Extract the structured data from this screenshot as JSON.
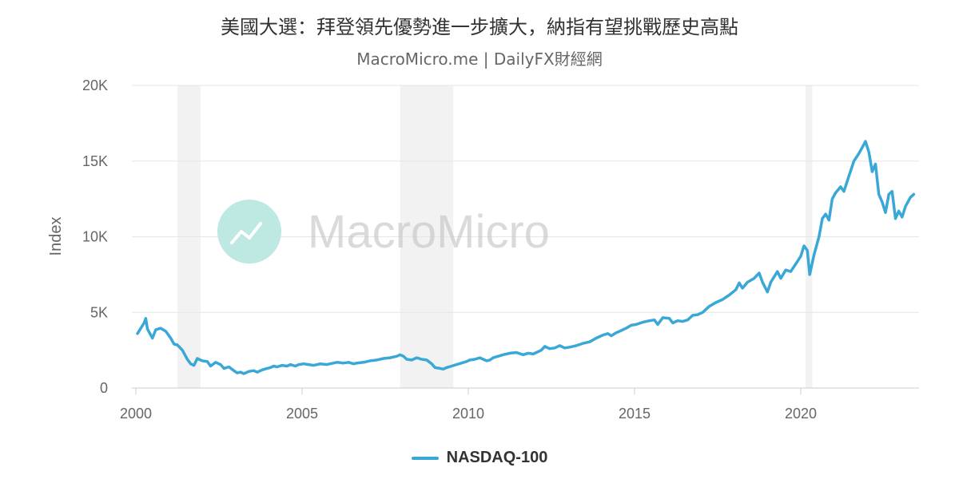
{
  "title": "美國大選：拜登領先優勢進一步擴大，納指有望挑戰歷史高點",
  "subtitle": "MacroMicro.me | DailyFX財經網",
  "watermark": "MacroMicro",
  "colors": {
    "series": "#3aa8d6",
    "recession": "#f2f2f2",
    "grid": "#e6e6e6",
    "axis": "#cccccc",
    "logo": "#b8e6df"
  },
  "chart_data": {
    "type": "line",
    "title": "美國大選：拜登領先優勢進一步擴大，納指有望挑戰歷史高點",
    "ylabel": "Index",
    "ylim": [
      0,
      20000
    ],
    "yticks": [
      0,
      5000,
      10000,
      15000,
      20000
    ],
    "ytick_labels": [
      "0",
      "5K",
      "10K",
      "15K",
      "20K"
    ],
    "xlim": [
      2000.0,
      2023.6
    ],
    "xticks": [
      2000,
      2005,
      2010,
      2015,
      2020
    ],
    "xtick_labels": [
      "2000",
      "2005",
      "2010",
      "2015",
      "2020"
    ],
    "grid": true,
    "legend_position": "bottom-center",
    "shaded_periods": [
      [
        2001.2,
        2001.9
      ],
      [
        2007.9,
        2009.5
      ],
      [
        2020.1,
        2020.3
      ]
    ],
    "series": [
      {
        "name": "NASDAQ-100",
        "points": [
          [
            2000.0,
            3600
          ],
          [
            2000.2,
            4300
          ],
          [
            2000.25,
            4600
          ],
          [
            2000.3,
            3900
          ],
          [
            2000.45,
            3300
          ],
          [
            2000.55,
            3850
          ],
          [
            2000.7,
            3950
          ],
          [
            2000.85,
            3750
          ],
          [
            2001.0,
            3300
          ],
          [
            2001.1,
            2900
          ],
          [
            2001.2,
            2850
          ],
          [
            2001.35,
            2500
          ],
          [
            2001.5,
            1900
          ],
          [
            2001.6,
            1600
          ],
          [
            2001.7,
            1500
          ],
          [
            2001.8,
            1950
          ],
          [
            2001.95,
            1800
          ],
          [
            2002.1,
            1750
          ],
          [
            2002.2,
            1450
          ],
          [
            2002.35,
            1700
          ],
          [
            2002.5,
            1550
          ],
          [
            2002.6,
            1300
          ],
          [
            2002.75,
            1400
          ],
          [
            2002.9,
            1150
          ],
          [
            2003.0,
            1000
          ],
          [
            2003.1,
            1050
          ],
          [
            2003.2,
            950
          ],
          [
            2003.35,
            1100
          ],
          [
            2003.5,
            1150
          ],
          [
            2003.6,
            1050
          ],
          [
            2003.75,
            1200
          ],
          [
            2003.9,
            1300
          ],
          [
            2004.0,
            1350
          ],
          [
            2004.1,
            1450
          ],
          [
            2004.2,
            1400
          ],
          [
            2004.35,
            1500
          ],
          [
            2004.5,
            1450
          ],
          [
            2004.6,
            1550
          ],
          [
            2004.75,
            1450
          ],
          [
            2004.85,
            1550
          ],
          [
            2005.0,
            1600
          ],
          [
            2005.15,
            1550
          ],
          [
            2005.3,
            1500
          ],
          [
            2005.5,
            1600
          ],
          [
            2005.7,
            1550
          ],
          [
            2005.9,
            1650
          ],
          [
            2006.0,
            1700
          ],
          [
            2006.2,
            1650
          ],
          [
            2006.35,
            1700
          ],
          [
            2006.5,
            1600
          ],
          [
            2006.6,
            1650
          ],
          [
            2006.8,
            1700
          ],
          [
            2007.0,
            1800
          ],
          [
            2007.2,
            1850
          ],
          [
            2007.4,
            1950
          ],
          [
            2007.6,
            2000
          ],
          [
            2007.8,
            2100
          ],
          [
            2007.9,
            2200
          ],
          [
            2008.0,
            2100
          ],
          [
            2008.1,
            1900
          ],
          [
            2008.25,
            1850
          ],
          [
            2008.4,
            2000
          ],
          [
            2008.55,
            1900
          ],
          [
            2008.7,
            1850
          ],
          [
            2008.85,
            1600
          ],
          [
            2008.95,
            1350
          ],
          [
            2009.1,
            1300
          ],
          [
            2009.2,
            1250
          ],
          [
            2009.3,
            1350
          ],
          [
            2009.45,
            1450
          ],
          [
            2009.6,
            1550
          ],
          [
            2009.75,
            1650
          ],
          [
            2009.9,
            1750
          ],
          [
            2010.0,
            1850
          ],
          [
            2010.15,
            1900
          ],
          [
            2010.3,
            2000
          ],
          [
            2010.4,
            1900
          ],
          [
            2010.5,
            1800
          ],
          [
            2010.6,
            1850
          ],
          [
            2010.7,
            2000
          ],
          [
            2010.85,
            2100
          ],
          [
            2011.0,
            2200
          ],
          [
            2011.2,
            2300
          ],
          [
            2011.4,
            2350
          ],
          [
            2011.6,
            2200
          ],
          [
            2011.75,
            2300
          ],
          [
            2011.9,
            2250
          ],
          [
            2012.0,
            2350
          ],
          [
            2012.15,
            2500
          ],
          [
            2012.25,
            2750
          ],
          [
            2012.4,
            2600
          ],
          [
            2012.55,
            2650
          ],
          [
            2012.7,
            2800
          ],
          [
            2012.85,
            2650
          ],
          [
            2013.0,
            2700
          ],
          [
            2013.2,
            2800
          ],
          [
            2013.4,
            2950
          ],
          [
            2013.6,
            3050
          ],
          [
            2013.8,
            3300
          ],
          [
            2014.0,
            3500
          ],
          [
            2014.15,
            3600
          ],
          [
            2014.25,
            3450
          ],
          [
            2014.4,
            3650
          ],
          [
            2014.55,
            3800
          ],
          [
            2014.7,
            3950
          ],
          [
            2014.85,
            4150
          ],
          [
            2015.0,
            4200
          ],
          [
            2015.2,
            4350
          ],
          [
            2015.4,
            4450
          ],
          [
            2015.55,
            4500
          ],
          [
            2015.65,
            4200
          ],
          [
            2015.8,
            4650
          ],
          [
            2016.0,
            4600
          ],
          [
            2016.1,
            4300
          ],
          [
            2016.25,
            4450
          ],
          [
            2016.4,
            4400
          ],
          [
            2016.55,
            4500
          ],
          [
            2016.7,
            4800
          ],
          [
            2016.85,
            4850
          ],
          [
            2017.0,
            5000
          ],
          [
            2017.2,
            5400
          ],
          [
            2017.4,
            5650
          ],
          [
            2017.6,
            5850
          ],
          [
            2017.8,
            6150
          ],
          [
            2018.0,
            6500
          ],
          [
            2018.1,
            6950
          ],
          [
            2018.2,
            6600
          ],
          [
            2018.35,
            7000
          ],
          [
            2018.55,
            7250
          ],
          [
            2018.7,
            7600
          ],
          [
            2018.8,
            7000
          ],
          [
            2018.95,
            6350
          ],
          [
            2019.05,
            7000
          ],
          [
            2019.25,
            7700
          ],
          [
            2019.35,
            7250
          ],
          [
            2019.5,
            7800
          ],
          [
            2019.65,
            7700
          ],
          [
            2019.8,
            8200
          ],
          [
            2019.95,
            8700
          ],
          [
            2020.05,
            9400
          ],
          [
            2020.15,
            9100
          ],
          [
            2020.22,
            7500
          ],
          [
            2020.35,
            8800
          ],
          [
            2020.5,
            10000
          ],
          [
            2020.6,
            11200
          ],
          [
            2020.7,
            11500
          ],
          [
            2020.8,
            11100
          ],
          [
            2020.9,
            12500
          ],
          [
            2021.0,
            12900
          ],
          [
            2021.15,
            13300
          ],
          [
            2021.25,
            13000
          ],
          [
            2021.4,
            14000
          ],
          [
            2021.55,
            15000
          ],
          [
            2021.7,
            15500
          ],
          [
            2021.8,
            15900
          ],
          [
            2021.9,
            16300
          ],
          [
            2022.0,
            15600
          ],
          [
            2022.1,
            14300
          ],
          [
            2022.2,
            14800
          ],
          [
            2022.3,
            12800
          ],
          [
            2022.4,
            12300
          ],
          [
            2022.5,
            11600
          ],
          [
            2022.6,
            12800
          ],
          [
            2022.7,
            13000
          ],
          [
            2022.8,
            11200
          ],
          [
            2022.9,
            11700
          ],
          [
            2023.0,
            11300
          ],
          [
            2023.1,
            12000
          ],
          [
            2023.25,
            12600
          ],
          [
            2023.35,
            12800
          ]
        ]
      }
    ]
  },
  "legend": {
    "items": [
      {
        "label": "NASDAQ-100",
        "color": "#3aa8d6"
      }
    ]
  }
}
